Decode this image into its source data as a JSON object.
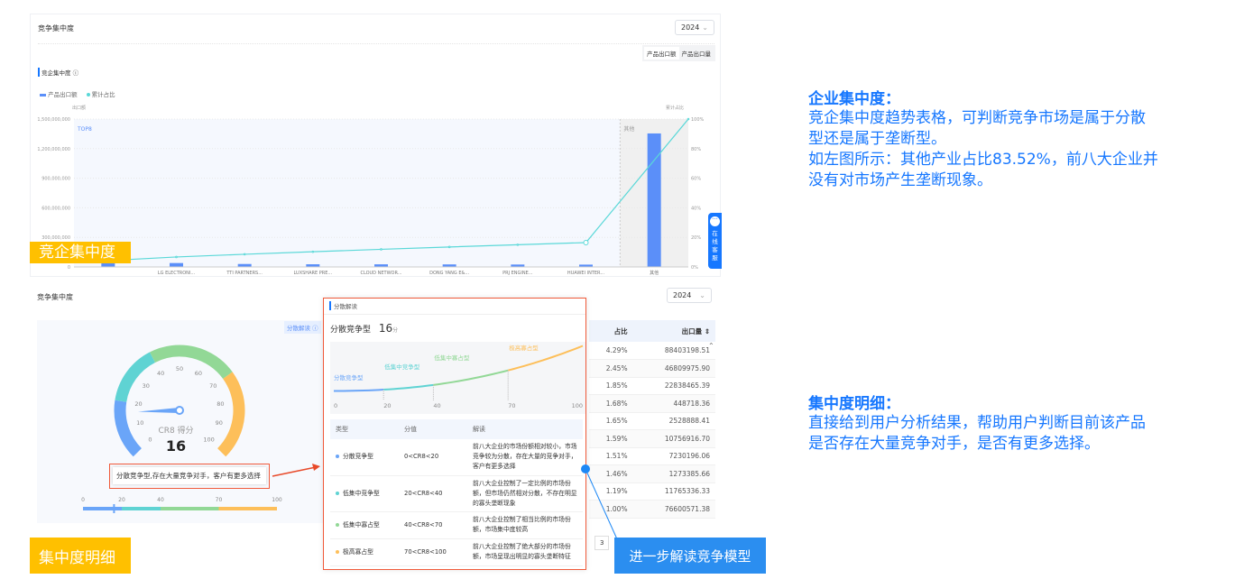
{
  "top_panel": {
    "title": "竞争集中度",
    "year": "2024",
    "toggle": [
      "产品出口额",
      "产品出口量"
    ],
    "section_title": "竞企集中度",
    "info_icon": "info-circle-icon",
    "legend": [
      "产品出口额",
      "累计占比"
    ],
    "colors": {
      "bar": "#5b8ff9",
      "line": "#5ad8d8"
    }
  },
  "chart_data": {
    "type": "bar+line",
    "categories": [
      "",
      "LG ELECTRONI...",
      "TTI PARTNERS...",
      "LUXSHARE PRE...",
      "CLOUD NETWOR...",
      "DONG YANG E&...",
      "PRJ ENGINE...",
      "HUAWEI INTER...",
      "其他"
    ],
    "series": [
      {
        "name": "产品出口额",
        "type": "bar",
        "axis": "left",
        "values": [
          69500000,
          39700000,
          30000000,
          27200000,
          26700000,
          25800000,
          24500000,
          23700000,
          1354000000
        ]
      },
      {
        "name": "累计占比",
        "type": "line",
        "axis": "right",
        "values": [
          4.29,
          6.74,
          8.59,
          10.27,
          11.92,
          13.51,
          15.02,
          16.48,
          100
        ]
      }
    ],
    "ylabel": "出口额",
    "y2label": "累计占比",
    "ylim": [
      0,
      1500000000
    ],
    "y2lim": [
      0,
      100
    ],
    "yticks": [
      "0",
      "300,000,000",
      "600,000,000",
      "900,000,000",
      "1,200,000,000",
      "1,500,000,000"
    ],
    "y2ticks": [
      "0%",
      "20%",
      "40%",
      "60%",
      "80%",
      "100%"
    ],
    "region_labels": [
      "TOP8",
      "其他"
    ],
    "grid": true,
    "legend_position": "top-left"
  },
  "chat_widget": {
    "label": "在线客服",
    "icon": "chat-bubble-icon"
  },
  "bottom_panel": {
    "title": "竞争集中度",
    "year": "2024",
    "interp_button": "分散解读",
    "gauge": {
      "label": "CR8 得分",
      "value": "16",
      "score": 16,
      "ticks": [
        "0",
        "10",
        "20",
        "30",
        "40",
        "50",
        "60",
        "70",
        "80",
        "90",
        "100"
      ]
    },
    "tooltip": "分散竞争型,存在大量竞争对手，客户有更多选择",
    "bar_ticks": [
      "0",
      "20",
      "40",
      "70",
      "100"
    ],
    "colors": {
      "c1": "#6aa5f8",
      "c2": "#5fd3d3",
      "c3": "#92d896",
      "c4": "#fdbf5a"
    },
    "table": {
      "headers": [
        "占比",
        "出口量"
      ],
      "rows": [
        [
          "4.29%",
          "88403198.51"
        ],
        [
          "2.45%",
          "46809975.90"
        ],
        [
          "1.85%",
          "22838465.39"
        ],
        [
          "1.68%",
          "448718.36"
        ],
        [
          "1.65%",
          "2528888.41"
        ],
        [
          "1.59%",
          "10756916.70"
        ],
        [
          "1.51%",
          "7230196.06"
        ],
        [
          "1.46%",
          "1273385.66"
        ],
        [
          "1.19%",
          "11765336.33"
        ],
        [
          "1.00%",
          "76600571.38"
        ]
      ],
      "page": "3"
    }
  },
  "popup": {
    "title": "分散解读",
    "type": "分散竞争型",
    "score": "16",
    "unit": "分",
    "curve_labels": [
      "分散竞争型",
      "低集中竞争型",
      "低集中寡占型",
      "极高寡占型"
    ],
    "curve_ticks": [
      "0",
      "20",
      "40",
      "70",
      "100"
    ],
    "table_headers": [
      "类型",
      "分值",
      "解读"
    ],
    "rows": [
      {
        "type": "分散竞争型",
        "range": "0<CR8<20",
        "desc": "前八大企业的市场份额相对较小，市场竞争较为分散，存在大量的竞争对手，客户有更多选择"
      },
      {
        "type": "低集中竞争型",
        "range": "20<CR8<40",
        "desc": "前八大企业控制了一定比例的市场份额，但市场仍然相对分散，不存在明显的寡头垄断现象"
      },
      {
        "type": "低集中寡占型",
        "range": "40<CR8<70",
        "desc": "前八大企业控制了相当比例的市场份额，市场集中度较高"
      },
      {
        "type": "极高寡占型",
        "range": "70<CR8<100",
        "desc": "前八大企业控制了绝大部分的市场份额，市场呈现出明显的寡头垄断特征"
      }
    ]
  },
  "badges": [
    "竞企集中度",
    "集中度明细",
    "进一步解读竞争模型"
  ],
  "notes": [
    {
      "heading": "企业集中度：",
      "lines": [
        "竞企集中度趋势表格，可判断竞争市场是属于分散",
        "型还是属于垄断型。",
        "如左图所示：其他产业占比83.52%，前八大企业并",
        "没有对市场产生垄断现象。"
      ]
    },
    {
      "heading": "集中度明细：",
      "lines": [
        "直接给到用户分析结果，帮助用户判断目前该产品",
        "是否存在大量竞争对手，是否有更多选择。"
      ]
    }
  ]
}
